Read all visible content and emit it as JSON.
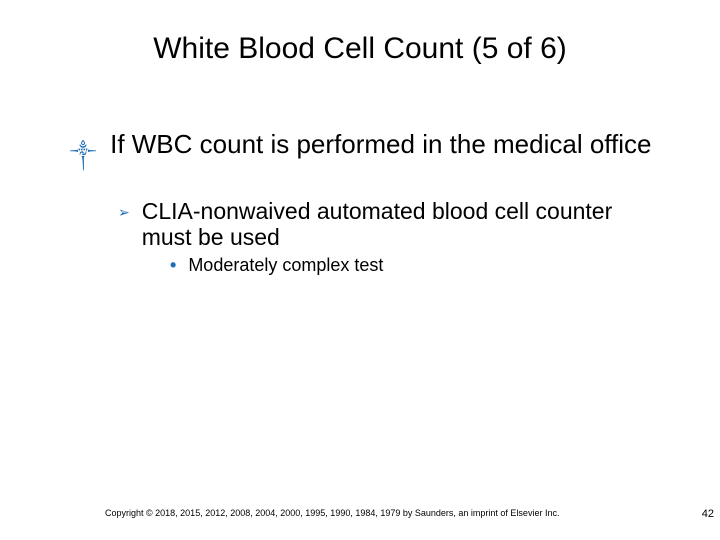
{
  "slide": {
    "title": "White Blood Cell Count (5 of 6)",
    "title_fontsize": 30,
    "title_color": "#000000",
    "bullet_color": "#1f6db5",
    "text_color": "#000000",
    "background_color": "#ffffff",
    "lvl1_fontsize": 26,
    "lvl2_fontsize": 23,
    "lvl3_fontsize": 18
  },
  "content": {
    "lvl1_glyph": "༒",
    "lvl1_text": "If WBC count is performed in the medical office",
    "lvl2_glyph": "➢",
    "lvl2_text": "CLIA-nonwaived automated blood cell counter must be used",
    "lvl3_glyph": "•",
    "lvl3_text": "Moderately complex test"
  },
  "footer": {
    "copyright": "Copyright © 2018, 2015, 2012, 2008, 2004, 2000, 1995, 1990, 1984, 1979 by Saunders, an imprint of Elsevier Inc.",
    "page_number": "42"
  }
}
